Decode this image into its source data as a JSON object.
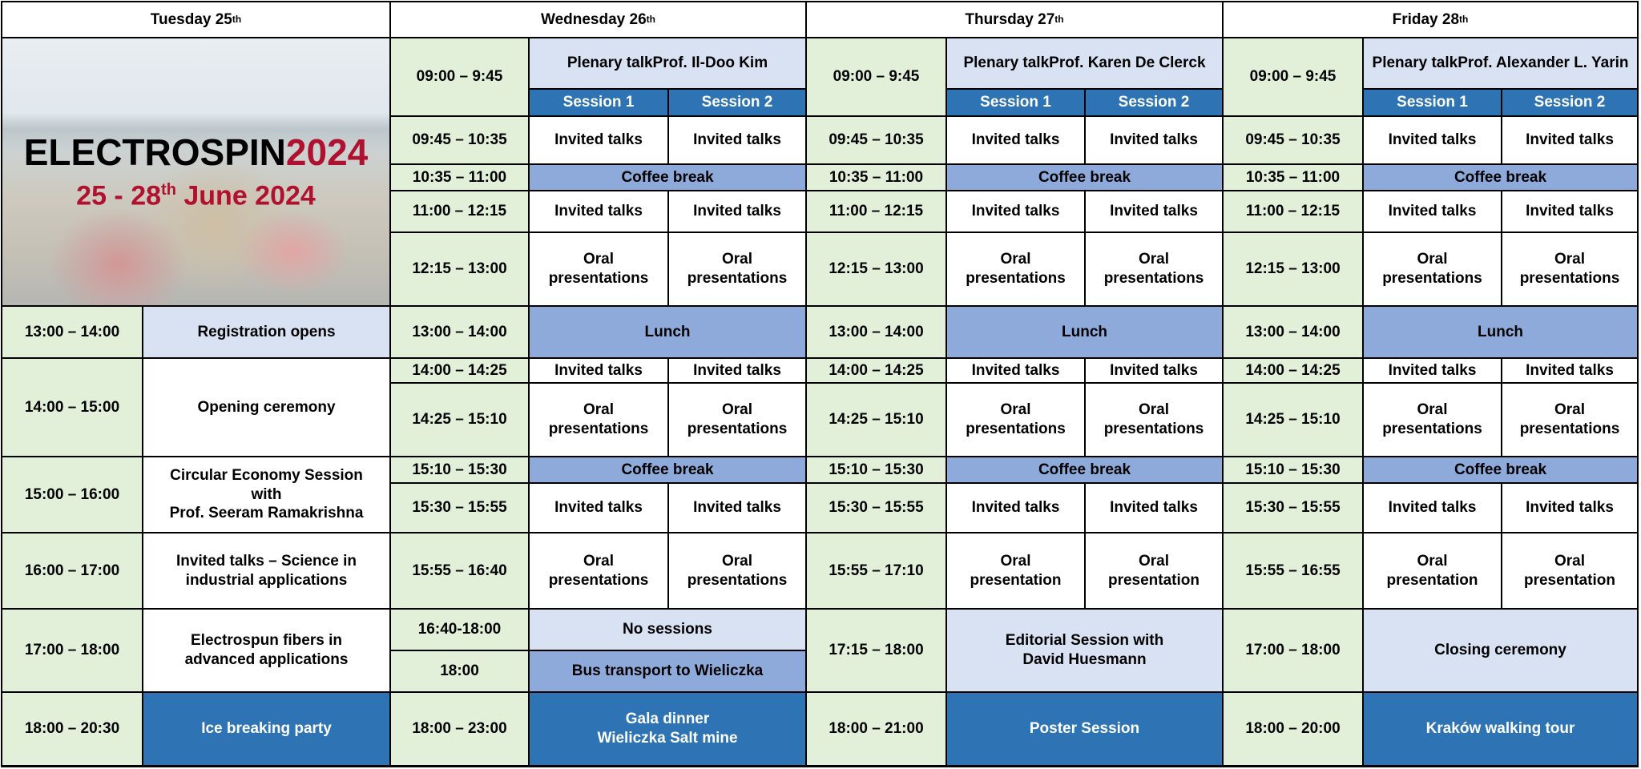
{
  "tuesday": {
    "header": {
      "day": "Tuesday 25",
      "sup": "th"
    },
    "banner": {
      "title_black": "ELECTROSPIN",
      "title_red": "2024",
      "dates_pre": "25 - 28",
      "dates_sup": "th",
      "dates_post": " June 2024"
    },
    "rows": [
      {
        "time": "13:00 – 14:00",
        "event": "Registration opens",
        "type": "info"
      },
      {
        "time": "14:00 – 15:00",
        "event": "Opening ceremony",
        "type": "session"
      },
      {
        "time": "15:00 – 16:00",
        "event": "Circular Economy Session\nwith\nProf. Seeram Ramakrishna",
        "type": "session"
      },
      {
        "time": "16:00 – 17:00",
        "event": "Invited talks – Science in\nindustrial applications",
        "type": "session"
      },
      {
        "time": "17:00 – 18:00",
        "event": "Electrospun fibers in\nadvanced applications",
        "type": "session"
      },
      {
        "time": "18:00 – 20:30",
        "event": "Ice breaking party",
        "type": "evening"
      }
    ]
  },
  "days": [
    {
      "header": {
        "day": "Wednesday 26",
        "sup": "th"
      },
      "plenary_time": "09:00 – 9:45",
      "plenary": {
        "title": "Plenary talk",
        "speaker": "Prof. Il-Doo Kim"
      },
      "session_labels": [
        "Session 1",
        "Session 2"
      ],
      "slots": [
        {
          "time": "09:45 – 10:35",
          "s1": "Invited talks",
          "s2": "Invited talks"
        },
        {
          "time": "10:35 – 11:00",
          "all": "Coffee break",
          "type": "brk"
        },
        {
          "time": "11:00 – 12:15",
          "s1": "Invited talks",
          "s2": "Invited talks"
        },
        {
          "time": "12:15 – 13:00",
          "s1": "Oral\npresentations",
          "s2": "Oral\npresentations"
        },
        {
          "time": "13:00 – 14:00",
          "all": "Lunch",
          "type": "brk"
        },
        {
          "time": "14:00 – 14:25",
          "s1": "Invited talks",
          "s2": "Invited talks"
        },
        {
          "time": "14:25 – 15:10",
          "s1": "Oral\npresentations",
          "s2": "Oral\npresentations"
        },
        {
          "time": "15:10 – 15:30",
          "all": "Coffee break",
          "type": "brk"
        },
        {
          "time": "15:30 – 15:55",
          "s1": "Invited talks",
          "s2": "Invited talks"
        },
        {
          "time": "15:55 – 16:40",
          "s1": "Oral\npresentations",
          "s2": "Oral\npresentations"
        },
        {
          "time": "16:40-18:00",
          "all": "No sessions",
          "type": "info"
        },
        {
          "time": "18:00",
          "all": "Bus transport to Wieliczka",
          "type": "brk"
        },
        {
          "time": "18:00 – 23:00",
          "all": "Gala dinner\nWieliczka Salt mine",
          "type": "evening"
        }
      ]
    },
    {
      "header": {
        "day": "Thursday 27",
        "sup": "th"
      },
      "plenary_time": "09:00 – 9:45",
      "plenary": {
        "title": "Plenary talk",
        "speaker": "Prof. Karen De Clerck"
      },
      "session_labels": [
        "Session 1",
        "Session 2"
      ],
      "slots": [
        {
          "time": "09:45 – 10:35",
          "s1": "Invited talks",
          "s2": "Invited talks"
        },
        {
          "time": "10:35 – 11:00",
          "all": "Coffee break",
          "type": "brk"
        },
        {
          "time": "11:00 – 12:15",
          "s1": "Invited talks",
          "s2": "Invited talks"
        },
        {
          "time": "12:15 – 13:00",
          "s1": "Oral\npresentations",
          "s2": "Oral\npresentations"
        },
        {
          "time": "13:00 – 14:00",
          "all": "Lunch",
          "type": "brk"
        },
        {
          "time": "14:00 – 14:25",
          "s1": "Invited talks",
          "s2": "Invited talks"
        },
        {
          "time": "14:25 – 15:10",
          "s1": "Oral\npresentations",
          "s2": "Oral\npresentations"
        },
        {
          "time": "15:10 – 15:30",
          "all": "Coffee break",
          "type": "brk"
        },
        {
          "time": "15:30 – 15:55",
          "s1": "Invited talks",
          "s2": "Invited talks"
        },
        {
          "time": "15:55 – 17:10",
          "s1": "Oral\npresentation",
          "s2": "Oral\npresentation"
        },
        {
          "time": "17:15 – 18:00",
          "all": "Editorial Session with\nDavid Huesmann",
          "type": "info"
        },
        {
          "time": "18:00 – 21:00",
          "all": "Poster Session",
          "type": "evening"
        }
      ]
    },
    {
      "header": {
        "day": "Friday 28",
        "sup": "th"
      },
      "plenary_time": "09:00 – 9:45",
      "plenary": {
        "title": "Plenary talk",
        "speaker": "Prof. Alexander L. Yarin"
      },
      "session_labels": [
        "Session 1",
        "Session 2"
      ],
      "slots": [
        {
          "time": "09:45 – 10:35",
          "s1": "Invited talks",
          "s2": "Invited talks"
        },
        {
          "time": "10:35 – 11:00",
          "all": "Coffee break",
          "type": "brk"
        },
        {
          "time": "11:00 – 12:15",
          "s1": "Invited talks",
          "s2": "Invited talks"
        },
        {
          "time": "12:15 – 13:00",
          "s1": "Oral\npresentations",
          "s2": "Oral\npresentations"
        },
        {
          "time": "13:00 – 14:00",
          "all": "Lunch",
          "type": "brk"
        },
        {
          "time": "14:00 – 14:25",
          "s1": "Invited talks",
          "s2": "Invited talks"
        },
        {
          "time": "14:25 – 15:10",
          "s1": "Oral\npresentations",
          "s2": "Oral\npresentations"
        },
        {
          "time": "15:10 – 15:30",
          "all": "Coffee break",
          "type": "brk"
        },
        {
          "time": "15:30 – 15:55",
          "s1": "Invited talks",
          "s2": "Invited talks"
        },
        {
          "time": "15:55 – 16:55",
          "s1": "Oral\npresentation",
          "s2": "Oral\npresentation"
        },
        {
          "time": "17:00 – 18:00",
          "all": "Closing ceremony",
          "type": "info"
        },
        {
          "time": "18:00 – 20:00",
          "all": "Kraków walking tour",
          "type": "evening"
        }
      ]
    }
  ],
  "colors": {
    "time_bg": "#e2efd9",
    "info_bg": "#d9e2f3",
    "break_bg": "#8eaadb",
    "evening_bg": "#2e74b5",
    "brand_red": "#b0112e"
  }
}
